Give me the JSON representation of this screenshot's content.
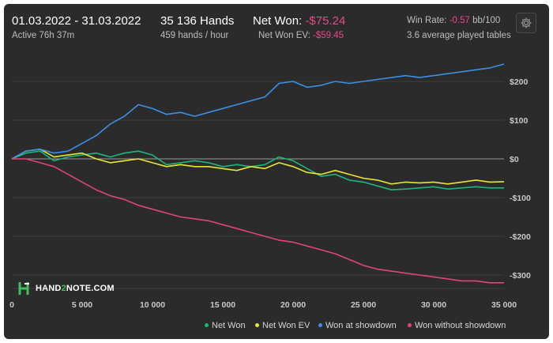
{
  "header": {
    "date_range": "01.03.2022 - 31.03.2022",
    "active": "Active 76h 37m",
    "hands": "35 136 Hands",
    "hands_rate": "459 hands / hour",
    "net_won_label": "Net Won:",
    "net_won_value": "-$75.24",
    "net_won_ev_label": "Net Won  EV:",
    "net_won_ev_value": "-$59.45",
    "win_rate_label": "Win Rate:",
    "win_rate_value": "-0.57",
    "win_rate_unit": "bb/100",
    "tables": "3.6 average played tables"
  },
  "logo": {
    "text_a": "HAND",
    "text_b": "2",
    "text_c": "NOTE.COM"
  },
  "icons": {
    "settings": "gear-icon",
    "logo": "hand2note-logo-icon"
  },
  "colors": {
    "net_won": "#1fb57b",
    "net_won_ev": "#e6e635",
    "showdown": "#3b8fe6",
    "no_showdown": "#e0457a",
    "negative": "#e84a86",
    "brand": "#3fbf5f"
  },
  "chart_data": {
    "type": "line",
    "xlabel": "",
    "ylabel": "",
    "xlim": [
      0,
      35000
    ],
    "ylim": [
      -340,
      250
    ],
    "x_ticks": [
      0,
      5000,
      10000,
      15000,
      20000,
      25000,
      30000,
      35000
    ],
    "x_tick_labels": [
      "0",
      "5 000",
      "10 000",
      "15 000",
      "20 000",
      "25 000",
      "30 000",
      "35 000"
    ],
    "y_ticks": [
      200,
      100,
      0,
      -100,
      -200,
      -300
    ],
    "y_tick_labels": [
      "$200",
      "$100",
      "$0",
      "-$100",
      "-$200",
      "-$300"
    ],
    "grid": true,
    "legend_position": "bottom-right",
    "x": [
      0,
      1000,
      2000,
      3000,
      4000,
      5000,
      6000,
      7000,
      8000,
      9000,
      10000,
      11000,
      12000,
      13000,
      14000,
      15000,
      16000,
      17000,
      18000,
      19000,
      20000,
      21000,
      22000,
      23000,
      24000,
      25000,
      26000,
      27000,
      28000,
      29000,
      30000,
      31000,
      32000,
      33000,
      34000,
      35000
    ],
    "series": [
      {
        "name": "Net Won",
        "color": "#1fb57b",
        "values": [
          0,
          15,
          20,
          -5,
          5,
          10,
          15,
          5,
          15,
          20,
          10,
          -15,
          -10,
          -5,
          -10,
          -20,
          -15,
          -20,
          -15,
          5,
          -5,
          -25,
          -45,
          -40,
          -55,
          -60,
          -70,
          -80,
          -78,
          -75,
          -72,
          -78,
          -75,
          -72,
          -75,
          -75
        ]
      },
      {
        "name": "Net Won  EV",
        "color": "#e6e635",
        "values": [
          0,
          20,
          25,
          5,
          10,
          15,
          0,
          -10,
          -5,
          0,
          -10,
          -20,
          -15,
          -20,
          -20,
          -25,
          -30,
          -20,
          -25,
          -10,
          -20,
          -35,
          -40,
          -30,
          -40,
          -50,
          -55,
          -65,
          -60,
          -62,
          -60,
          -65,
          -60,
          -55,
          -60,
          -59
        ]
      },
      {
        "name": "Won at showdown",
        "color": "#3b8fe6",
        "values": [
          0,
          20,
          25,
          15,
          20,
          40,
          60,
          90,
          110,
          140,
          130,
          115,
          120,
          110,
          120,
          130,
          140,
          150,
          160,
          195,
          200,
          185,
          190,
          200,
          195,
          200,
          205,
          210,
          215,
          210,
          215,
          220,
          225,
          230,
          235,
          245
        ]
      },
      {
        "name": "Won without showdown",
        "color": "#e0457a",
        "values": [
          0,
          0,
          -10,
          -20,
          -40,
          -60,
          -80,
          -95,
          -105,
          -120,
          -130,
          -140,
          -150,
          -155,
          -160,
          -170,
          -180,
          -190,
          -200,
          -210,
          -215,
          -225,
          -235,
          -245,
          -260,
          -275,
          -285,
          -290,
          -295,
          -300,
          -305,
          -310,
          -315,
          -315,
          -320,
          -320
        ]
      }
    ]
  }
}
